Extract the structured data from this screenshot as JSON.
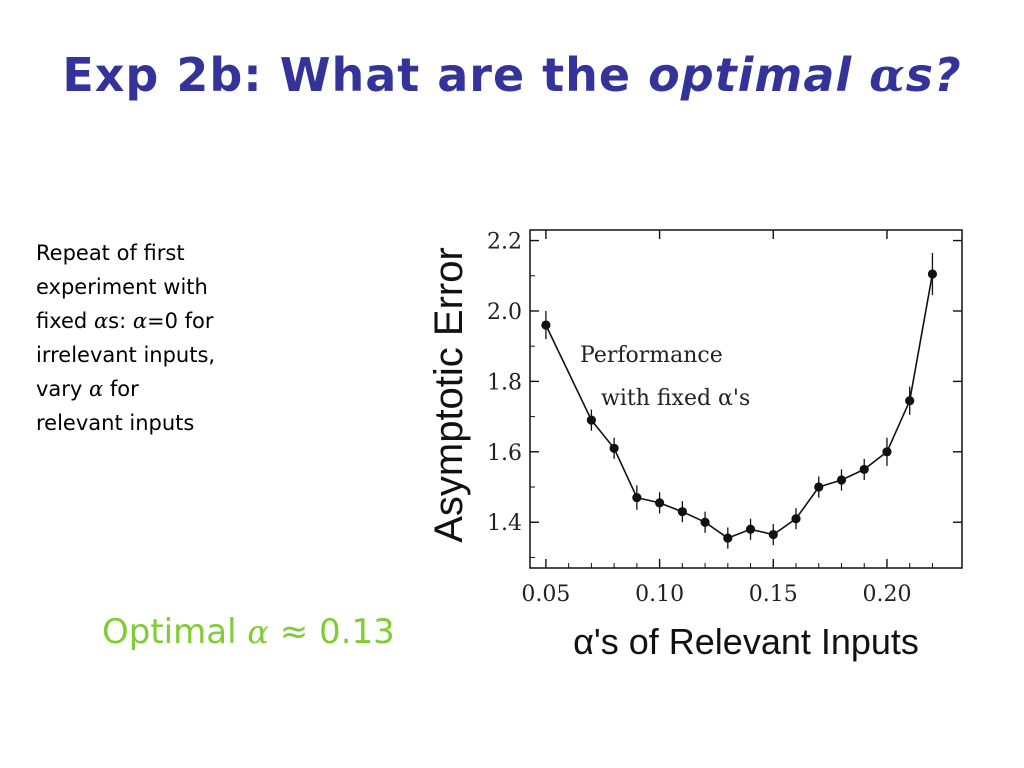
{
  "slide": {
    "title_main": "Exp 2b: What are the ",
    "title_italic": "optimal ",
    "title_alpha": "α",
    "title_end": "s?",
    "desc": {
      "line1": "Repeat of first",
      "line2": "experiment with",
      "line3a": "fixed ",
      "alpha": "α",
      "line3b": "s: ",
      "line3c": "=0 for",
      "line4": "irrelevant inputs,",
      "line5a": "vary ",
      "line5b": " for",
      "line6": "relevant inputs"
    },
    "optimal_label": "Optimal ",
    "optimal_alpha": "α",
    "optimal_approx": " ≈ 0.13"
  },
  "colors": {
    "title": "#333399",
    "optimal_note": "#80CC33",
    "plot_ink": "#111111"
  },
  "chart_data": {
    "type": "line",
    "xlabel": "α's of Relevant Inputs",
    "ylabel": "Asymptotic Error",
    "xlim": [
      0.043,
      0.233
    ],
    "ylim": [
      1.27,
      2.23
    ],
    "xticks": [
      0.05,
      0.1,
      0.15,
      0.2
    ],
    "xtick_labels": [
      "0.05",
      "0.10",
      "0.15",
      "0.20"
    ],
    "yticks": [
      1.4,
      1.6,
      1.8,
      2.0,
      2.2
    ],
    "ytick_labels": [
      "1.4",
      "1.6",
      "1.8",
      "2.0",
      "2.2"
    ],
    "annotation": [
      "Performance",
      "with fixed α's"
    ],
    "grid": false,
    "series": [
      {
        "x": [
          0.05,
          0.07,
          0.08,
          0.09,
          0.1,
          0.11,
          0.12,
          0.13,
          0.14,
          0.15,
          0.16,
          0.17,
          0.18,
          0.19,
          0.2,
          0.21,
          0.22
        ],
        "y": [
          1.96,
          1.69,
          1.61,
          1.47,
          1.455,
          1.43,
          1.4,
          1.355,
          1.38,
          1.365,
          1.41,
          1.5,
          1.52,
          1.55,
          1.6,
          1.745,
          2.105
        ],
        "err": [
          0.04,
          0.03,
          0.03,
          0.035,
          0.03,
          0.03,
          0.03,
          0.03,
          0.03,
          0.03,
          0.03,
          0.03,
          0.03,
          0.03,
          0.04,
          0.04,
          0.06
        ]
      }
    ]
  }
}
